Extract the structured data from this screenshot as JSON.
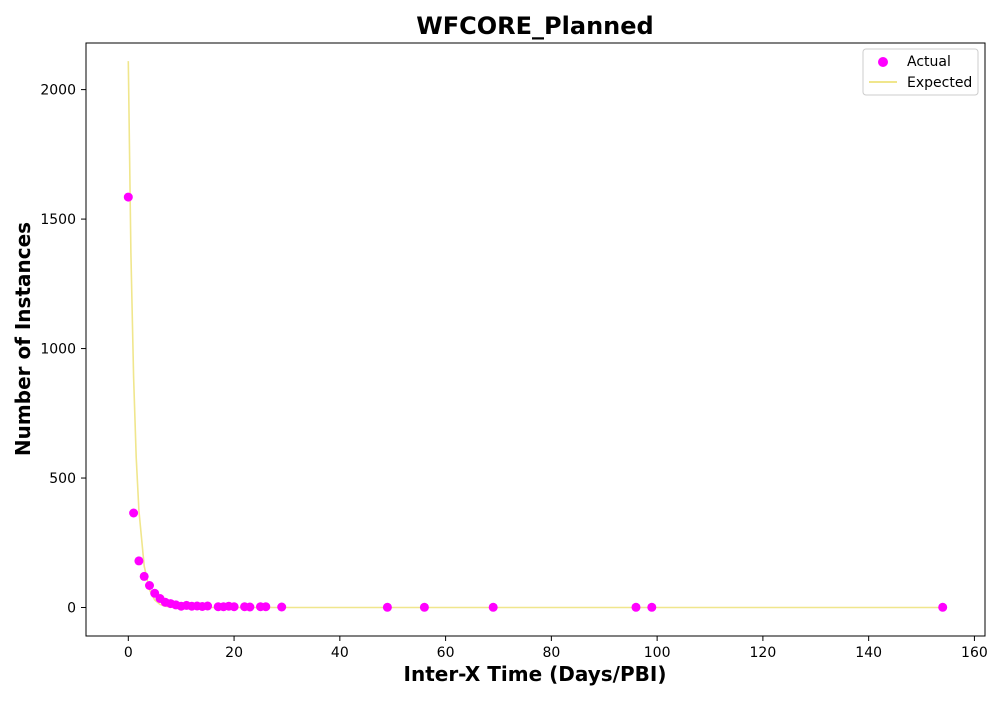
{
  "chart_data": {
    "type": "scatter",
    "title": "WFCORE_Planned",
    "xlabel": "Inter-X Time (Days/PBI)",
    "ylabel": "Number of Instances",
    "xlim": [
      -8,
      162
    ],
    "ylim": [
      -110,
      2180
    ],
    "xticks": [
      0,
      20,
      40,
      60,
      80,
      100,
      120,
      140,
      160
    ],
    "xtick_labels": [
      "0",
      "20",
      "40",
      "60",
      "80",
      "100",
      "120",
      "140",
      "160"
    ],
    "yticks": [
      0,
      500,
      1000,
      1500,
      2000
    ],
    "ytick_labels": [
      "0",
      "500",
      "1000",
      "1500",
      "2000"
    ],
    "grid": false,
    "legend_position": "top-right",
    "series": [
      {
        "name": "Actual",
        "kind": "scatter",
        "color": "#ff00ff",
        "points": [
          {
            "x": 0,
            "y": 1585
          },
          {
            "x": 1,
            "y": 365
          },
          {
            "x": 2,
            "y": 180
          },
          {
            "x": 3,
            "y": 120
          },
          {
            "x": 4,
            "y": 85
          },
          {
            "x": 5,
            "y": 55
          },
          {
            "x": 6,
            "y": 35
          },
          {
            "x": 7,
            "y": 20
          },
          {
            "x": 8,
            "y": 15
          },
          {
            "x": 9,
            "y": 10
          },
          {
            "x": 10,
            "y": 5
          },
          {
            "x": 11,
            "y": 8
          },
          {
            "x": 12,
            "y": 5
          },
          {
            "x": 13,
            "y": 6
          },
          {
            "x": 14,
            "y": 4
          },
          {
            "x": 15,
            "y": 6
          },
          {
            "x": 17,
            "y": 3
          },
          {
            "x": 18,
            "y": 3
          },
          {
            "x": 19,
            "y": 5
          },
          {
            "x": 20,
            "y": 3
          },
          {
            "x": 22,
            "y": 3
          },
          {
            "x": 23,
            "y": 2
          },
          {
            "x": 25,
            "y": 3
          },
          {
            "x": 26,
            "y": 3
          },
          {
            "x": 29,
            "y": 2
          },
          {
            "x": 49,
            "y": 1
          },
          {
            "x": 56,
            "y": 1
          },
          {
            "x": 69,
            "y": 1
          },
          {
            "x": 96,
            "y": 1
          },
          {
            "x": 99,
            "y": 1
          },
          {
            "x": 154,
            "y": 1
          }
        ]
      },
      {
        "name": "Expected",
        "kind": "line",
        "color": "#f0e68c",
        "points": [
          {
            "x": 0,
            "y": 2110
          },
          {
            "x": 0.5,
            "y": 1370
          },
          {
            "x": 1,
            "y": 890
          },
          {
            "x": 1.5,
            "y": 580
          },
          {
            "x": 2,
            "y": 375
          },
          {
            "x": 3,
            "y": 160
          },
          {
            "x": 4,
            "y": 68
          },
          {
            "x": 5,
            "y": 29
          },
          {
            "x": 6,
            "y": 12
          },
          {
            "x": 7,
            "y": 5
          },
          {
            "x": 8,
            "y": 2
          },
          {
            "x": 10,
            "y": 0.5
          },
          {
            "x": 20,
            "y": 0
          },
          {
            "x": 40,
            "y": 0
          },
          {
            "x": 80,
            "y": 0
          },
          {
            "x": 120,
            "y": 0
          },
          {
            "x": 154,
            "y": 0
          }
        ]
      }
    ]
  }
}
